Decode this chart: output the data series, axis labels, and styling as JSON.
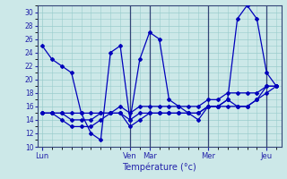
{
  "xlabel": "Température (°c)",
  "ylim": [
    10,
    31
  ],
  "yticks": [
    10,
    12,
    14,
    16,
    18,
    20,
    22,
    24,
    26,
    28,
    30
  ],
  "background_color": "#cce8e8",
  "grid_color": "#99cccc",
  "line_color": "#0000bb",
  "day_labels": [
    "Lun",
    "Ven",
    "Mar",
    "Mer",
    "Jeu"
  ],
  "day_x": [
    0,
    9,
    11,
    17,
    23
  ],
  "vline_x": [
    9,
    11,
    17,
    23
  ],
  "num_points": 25,
  "series": [
    [
      25,
      23,
      22,
      21,
      15,
      12,
      11,
      24,
      25,
      14,
      23,
      27,
      26,
      17,
      16,
      15,
      14,
      16,
      16,
      17,
      29,
      31,
      29,
      21,
      19
    ],
    [
      15,
      15,
      15,
      15,
      15,
      15,
      15,
      15,
      16,
      15,
      16,
      16,
      16,
      16,
      16,
      16,
      16,
      17,
      17,
      18,
      18,
      18,
      18,
      19,
      19
    ],
    [
      15,
      15,
      15,
      14,
      14,
      14,
      15,
      15,
      15,
      14,
      15,
      15,
      15,
      15,
      15,
      15,
      15,
      16,
      16,
      17,
      16,
      16,
      17,
      19,
      19
    ],
    [
      15,
      15,
      14,
      13,
      13,
      13,
      14,
      15,
      15,
      13,
      14,
      15,
      15,
      15,
      15,
      15,
      15,
      16,
      16,
      16,
      16,
      16,
      17,
      18,
      19
    ]
  ]
}
